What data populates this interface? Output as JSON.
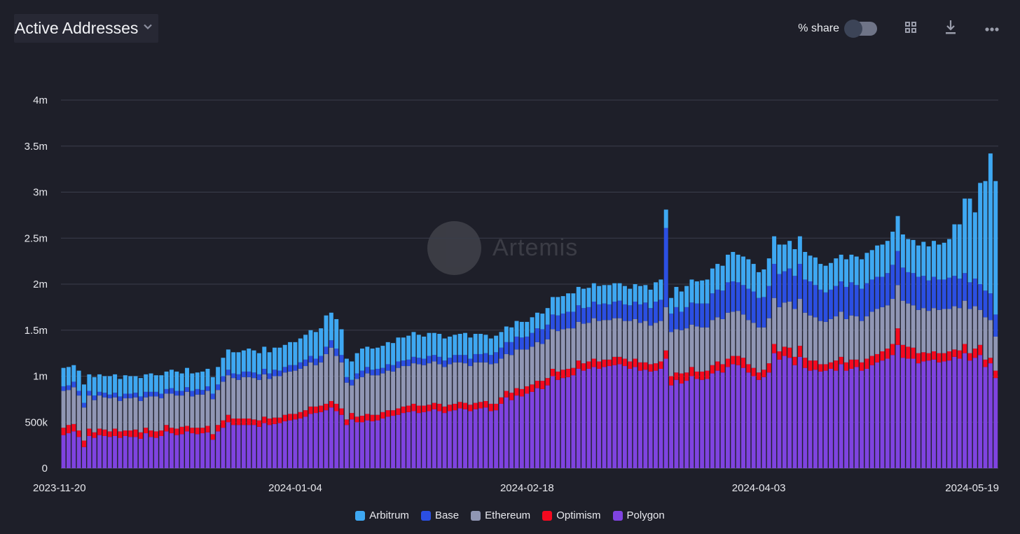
{
  "header": {
    "title": "Active Addresses",
    "share_label": "% share",
    "share_enabled": false
  },
  "watermark": "Artemis",
  "colors": {
    "Arbitrum": "#3ea8f2",
    "Base": "#2b4fe2",
    "Ethereum": "#9096b4",
    "Optimism": "#f5091f",
    "Polygon": "#7f43e0",
    "background": "#1e1f29"
  },
  "chart_data": {
    "type": "bar",
    "stacked": true,
    "title": "Active Addresses",
    "x_start": "2023-11-20",
    "x_end": "2024-05-19",
    "x_ticks": [
      "2023-11-20",
      "2024-01-04",
      "2024-02-18",
      "2024-04-03",
      "2024-05-19"
    ],
    "y_ticks": [
      "0",
      "500k",
      "1m",
      "1.5m",
      "2m",
      "2.5m",
      "3m",
      "3.5m",
      "4m"
    ],
    "ylim": [
      0,
      4000000
    ],
    "units": "thousands of addresses per day",
    "grid": true,
    "legend_position": "bottom-center",
    "series": [
      {
        "name": "Polygon",
        "values": [
          360,
          380,
          400,
          340,
          230,
          350,
          330,
          360,
          350,
          340,
          350,
          330,
          350,
          340,
          340,
          320,
          380,
          340,
          330,
          350,
          400,
          380,
          360,
          370,
          400,
          380,
          370,
          380,
          390,
          310,
          400,
          440,
          500,
          470,
          470,
          470,
          470,
          470,
          450,
          490,
          470,
          480,
          490,
          510,
          520,
          530,
          540,
          560,
          590,
          600,
          610,
          630,
          660,
          620,
          580,
          470,
          530,
          500,
          500,
          520,
          510,
          520,
          540,
          560,
          570,
          580,
          600,
          610,
          620,
          600,
          610,
          620,
          640,
          620,
          600,
          620,
          630,
          650,
          640,
          620,
          640,
          650,
          660,
          620,
          630,
          700,
          770,
          740,
          790,
          780,
          810,
          830,
          870,
          860,
          900,
          1000,
          960,
          980,
          990,
          1010,
          1080,
          1060,
          1080,
          1100,
          1080,
          1100,
          1110,
          1120,
          1130,
          1110,
          1080,
          1100,
          1060,
          1070,
          1050,
          1060,
          1080,
          1190,
          900,
          960,
          920,
          950,
          1000,
          970,
          960,
          970,
          1030,
          1060,
          1040,
          1100,
          1130,
          1120,
          1090,
          1040,
          1000,
          960,
          990,
          1040,
          1250,
          1180,
          1220,
          1200,
          1120,
          1210,
          1090,
          1060,
          1070,
          1050,
          1060,
          1080,
          1060,
          1130,
          1060,
          1080,
          1100,
          1060,
          1080,
          1120,
          1150,
          1170,
          1190,
          1230,
          1340,
          1200,
          1190,
          1190,
          1140,
          1160,
          1170,
          1180,
          1150,
          1160,
          1170,
          1210,
          1190,
          1250,
          1170,
          1200,
          1230,
          1100,
          1140,
          980
        ]
      },
      {
        "name": "Optimism",
        "values": [
          80,
          90,
          80,
          70,
          70,
          80,
          60,
          70,
          70,
          60,
          80,
          70,
          60,
          70,
          80,
          70,
          60,
          70,
          70,
          60,
          70,
          60,
          70,
          80,
          60,
          60,
          70,
          60,
          70,
          60,
          70,
          80,
          80,
          70,
          70,
          70,
          70,
          60,
          70,
          70,
          70,
          70,
          60,
          70,
          70,
          60,
          70,
          70,
          80,
          70,
          70,
          70,
          70,
          80,
          70,
          60,
          70,
          60,
          70,
          70,
          70,
          60,
          70,
          70,
          60,
          70,
          70,
          70,
          80,
          80,
          70,
          70,
          70,
          80,
          70,
          70,
          70,
          70,
          70,
          70,
          70,
          70,
          70,
          80,
          70,
          70,
          70,
          80,
          80,
          80,
          80,
          80,
          80,
          90,
          80,
          80,
          90,
          90,
          90,
          80,
          90,
          80,
          80,
          90,
          80,
          80,
          70,
          90,
          80,
          80,
          80,
          90,
          90,
          80,
          80,
          80,
          80,
          90,
          100,
          80,
          110,
          90,
          100,
          80,
          90,
          90,
          90,
          100,
          90,
          90,
          90,
          100,
          110,
          90,
          90,
          80,
          80,
          100,
          100,
          90,
          100,
          110,
          90,
          120,
          110,
          110,
          100,
          80,
          70,
          70,
          110,
          80,
          90,
          100,
          80,
          90,
          110,
          100,
          90,
          100,
          110,
          120,
          180,
          140,
          130,
          120,
          110,
          100,
          80,
          90,
          100,
          90,
          100,
          80,
          90,
          100,
          80,
          100,
          110,
          80,
          60,
          80
        ]
      },
      {
        "name": "Ethereum",
        "values": [
          400,
          380,
          400,
          380,
          360,
          360,
          350,
          360,
          350,
          360,
          340,
          330,
          350,
          350,
          350,
          340,
          330,
          370,
          380,
          350,
          340,
          370,
          360,
          340,
          370,
          340,
          360,
          360,
          380,
          380,
          380,
          420,
          430,
          440,
          420,
          450,
          450,
          450,
          440,
          460,
          430,
          450,
          450,
          460,
          460,
          470,
          470,
          480,
          480,
          450,
          470,
          540,
          580,
          520,
          500,
          400,
          300,
          410,
          420,
          440,
          430,
          430,
          420,
          430,
          420,
          440,
          440,
          430,
          440,
          450,
          440,
          450,
          450,
          430,
          430,
          440,
          450,
          430,
          430,
          420,
          440,
          430,
          420,
          430,
          440,
          420,
          400,
          410,
          420,
          430,
          400,
          410,
          420,
          400,
          420,
          430,
          440,
          440,
          440,
          430,
          420,
          430,
          420,
          440,
          440,
          430,
          430,
          420,
          420,
          410,
          440,
          430,
          430,
          450,
          420,
          440,
          440,
          470,
          480,
          470,
          470,
          480,
          460,
          490,
          480,
          470,
          490,
          480,
          490,
          500,
          480,
          490,
          470,
          480,
          490,
          490,
          460,
          490,
          500,
          480,
          480,
          500,
          520,
          510,
          490,
          490,
          470,
          470,
          460,
          470,
          480,
          490,
          470,
          480,
          470,
          450,
          460,
          480,
          490,
          480,
          470,
          490,
          470,
          480,
          470,
          460,
          470,
          480,
          460,
          470,
          470,
          480,
          460,
          470,
          460,
          470,
          480,
          460,
          380,
          460,
          410,
          370
        ]
      },
      {
        "name": "Base",
        "values": [
          50,
          50,
          60,
          50,
          50,
          50,
          50,
          40,
          50,
          40,
          50,
          50,
          50,
          50,
          50,
          50,
          60,
          50,
          50,
          50,
          50,
          60,
          50,
          50,
          50,
          60,
          60,
          50,
          50,
          60,
          60,
          60,
          60,
          50,
          60,
          60,
          60,
          60,
          60,
          60,
          60,
          70,
          60,
          60,
          70,
          60,
          70,
          70,
          70,
          70,
          70,
          80,
          80,
          80,
          80,
          60,
          60,
          60,
          70,
          70,
          60,
          70,
          60,
          70,
          70,
          70,
          60,
          70,
          70,
          70,
          70,
          80,
          70,
          80,
          70,
          70,
          80,
          80,
          90,
          80,
          90,
          90,
          100,
          100,
          120,
          120,
          130,
          140,
          140,
          130,
          140,
          150,
          150,
          160,
          160,
          160,
          170,
          170,
          180,
          180,
          180,
          170,
          170,
          180,
          180,
          180,
          170,
          180,
          190,
          180,
          170,
          190,
          200,
          200,
          190,
          230,
          230,
          860,
          200,
          240,
          200,
          230,
          240,
          250,
          260,
          260,
          290,
          300,
          310,
          330,
          330,
          310,
          320,
          340,
          340,
          320,
          330,
          350,
          370,
          360,
          340,
          360,
          360,
          380,
          360,
          370,
          350,
          340,
          320,
          320,
          330,
          330,
          350,
          360,
          340,
          350,
          360,
          350,
          350,
          330,
          350,
          370,
          370,
          360,
          340,
          350,
          360,
          350,
          330,
          340,
          330,
          320,
          340,
          330,
          320,
          300,
          290,
          300,
          280,
          290,
          290,
          240
        ]
      },
      {
        "name": "Arbitrum",
        "values": [
          200,
          200,
          180,
          220,
          200,
          180,
          200,
          190,
          180,
          200,
          200,
          190,
          200,
          190,
          180,
          200,
          190,
          200,
          180,
          200,
          190,
          200,
          210,
          190,
          210,
          190,
          180,
          200,
          190,
          180,
          190,
          200,
          220,
          230,
          240,
          230,
          250,
          240,
          230,
          240,
          230,
          240,
          250,
          240,
          250,
          250,
          260,
          270,
          280,
          290,
          300,
          340,
          300,
          320,
          280,
          200,
          200,
          220,
          240,
          220,
          230,
          230,
          240,
          240,
          240,
          260,
          250,
          260,
          270,
          250,
          240,
          250,
          240,
          250,
          240,
          230,
          220,
          230,
          240,
          230,
          220,
          220,
          200,
          180,
          180,
          170,
          170,
          160,
          170,
          170,
          160,
          170,
          170,
          170,
          180,
          190,
          200,
          190,
          200,
          200,
          200,
          210,
          210,
          200,
          200,
          200,
          210,
          200,
          190,
          200,
          180,
          190,
          200,
          190,
          200,
          210,
          220,
          200,
          170,
          220,
          220,
          230,
          250,
          240,
          250,
          260,
          270,
          280,
          270,
          300,
          320,
          300,
          310,
          320,
          300,
          280,
          300,
          300,
          300,
          320,
          290,
          300,
          290,
          300,
          300,
          280,
          300,
          280,
          290,
          290,
          300,
          290,
          300,
          300,
          310,
          320,
          330,
          320,
          340,
          350,
          350,
          360,
          380,
          360,
          360,
          360,
          340,
          370,
          370,
          390,
          380,
          400,
          420,
          560,
          590,
          810,
          910,
          720,
          1100,
          1190,
          1520,
          1450
        ]
      }
    ]
  }
}
